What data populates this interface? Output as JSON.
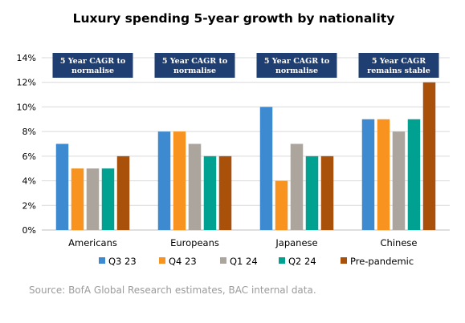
{
  "chart_data": {
    "type": "bar",
    "title": "Luxury spending 5-year growth by nationality",
    "categories": [
      "Americans",
      "Europeans",
      "Japanese",
      "Chinese"
    ],
    "series": [
      {
        "name": "Q3 23",
        "color": "#3e8ad0",
        "values": [
          7,
          8,
          10,
          9
        ]
      },
      {
        "name": "Q4 23",
        "color": "#f7931e",
        "values": [
          5,
          8,
          4,
          9
        ]
      },
      {
        "name": "Q1 24",
        "color": "#aba59e",
        "values": [
          5,
          7,
          7,
          8
        ]
      },
      {
        "name": "Q2 24",
        "color": "#00a191",
        "values": [
          5,
          6,
          6,
          9
        ]
      },
      {
        "name": "Pre-pandemic",
        "color": "#a9500b",
        "values": [
          6,
          6,
          6,
          12
        ]
      }
    ],
    "ylim": [
      0,
      14
    ],
    "yticks": [
      0,
      2,
      4,
      6,
      8,
      10,
      12,
      14
    ],
    "y_tick_format": "percent",
    "xlabel": "",
    "ylabel": "",
    "grid": true,
    "legend_position": "bottom",
    "annotations": [
      {
        "line1": "5 Year CAGR to",
        "line2": "normalise"
      },
      {
        "line1": "5 Year CAGR to",
        "line2": "normalise"
      },
      {
        "line1": "5 Year CAGR to",
        "line2": "normalise"
      },
      {
        "line1": "5 Year CAGR",
        "line2": "remains stable"
      }
    ],
    "annotation_color": "#1f3f73",
    "source": "Source: BofA Global Research estimates, BAC internal data."
  }
}
